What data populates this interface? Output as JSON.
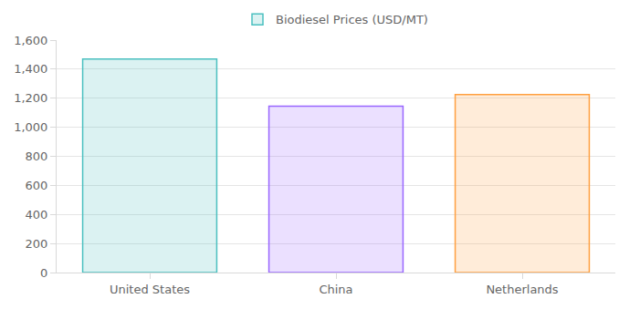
{
  "chart_data": {
    "type": "bar",
    "categories": [
      "United States",
      "China",
      "Netherlands"
    ],
    "series": [
      {
        "name": "Biodiesel Prices (USD/MT)",
        "values": [
          1470,
          1145,
          1225
        ]
      }
    ],
    "colors": [
      "#4bc0c0",
      "#9966ff",
      "#ff9f40"
    ],
    "ylim": [
      0,
      1600
    ],
    "yticks": [
      0,
      200,
      400,
      600,
      800,
      {
        "value": 1000,
        "label": "1,000"
      },
      {
        "value": 1200,
        "label": "1,200"
      },
      {
        "value": 1400,
        "label": "1,400"
      },
      {
        "value": 1600,
        "label": "1,600"
      }
    ],
    "grid": true,
    "legend": "top"
  }
}
